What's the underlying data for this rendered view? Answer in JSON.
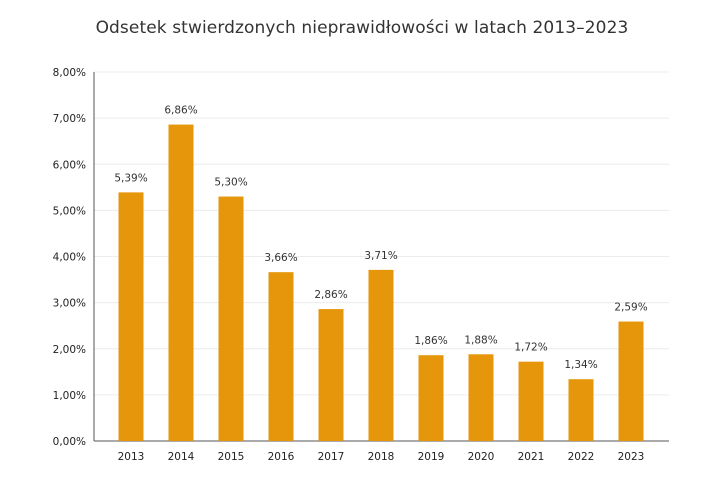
{
  "chart_data": {
    "type": "bar",
    "title": "Odsetek stwierdzonych nieprawidłowości w latach 2013–2023",
    "categories": [
      "2013",
      "2014",
      "2015",
      "2016",
      "2017",
      "2018",
      "2019",
      "2020",
      "2021",
      "2022",
      "2023"
    ],
    "values": [
      5.39,
      6.86,
      5.3,
      3.66,
      2.86,
      3.71,
      1.86,
      1.88,
      1.72,
      1.34,
      2.59
    ],
    "data_labels": [
      "5,39%",
      "6,86%",
      "5,30%",
      "3,66%",
      "2,86%",
      "3,71%",
      "1,86%",
      "1,88%",
      "1,72%",
      "1,34%",
      "2,59%"
    ],
    "xlabel": "",
    "ylabel": "",
    "ylim": [
      0,
      8
    ],
    "y_ticks": [
      0,
      1,
      2,
      3,
      4,
      5,
      6,
      7,
      8
    ],
    "y_tick_labels": [
      "0,00%",
      "1,00%",
      "2,00%",
      "3,00%",
      "4,00%",
      "5,00%",
      "6,00%",
      "7,00%",
      "8,00%"
    ],
    "bar_color": "#E6960A",
    "grid": true,
    "legend": "none"
  }
}
